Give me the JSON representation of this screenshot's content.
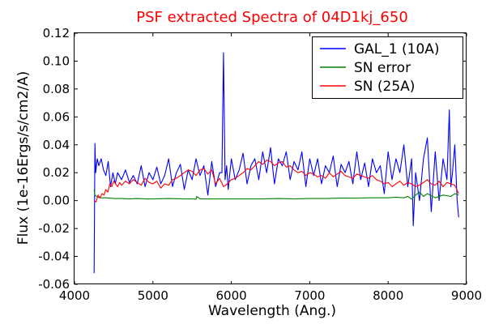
{
  "chart_data": {
    "type": "line",
    "title": "PSF extracted Spectra of 04D1kj_650",
    "xlabel": "Wavelength (Ang.)",
    "ylabel": "Flux (1e-16Ergs/s/cm2/A)",
    "xlim": [
      4000,
      9000
    ],
    "ylim": [
      -0.06,
      0.12
    ],
    "xticks": [
      4000,
      5000,
      6000,
      7000,
      8000,
      9000
    ],
    "xtick_labels": [
      "4000",
      "5000",
      "6000",
      "7000",
      "8000",
      "9000"
    ],
    "yticks": [
      -0.06,
      -0.04,
      -0.02,
      0.0,
      0.02,
      0.04,
      0.06,
      0.08,
      0.1,
      0.12
    ],
    "ytick_labels": [
      "-0.06",
      "-0.04",
      "-0.02",
      "0.00",
      "0.02",
      "0.04",
      "0.06",
      "0.08",
      "0.10",
      "0.12"
    ],
    "grid": false,
    "legend_position": "top-right",
    "series": [
      {
        "name": "GAL_1 (10A)",
        "color": "#0000ff",
        "x": [
          4250,
          4260,
          4270,
          4290,
          4310,
          4340,
          4370,
          4400,
          4430,
          4460,
          4490,
          4520,
          4550,
          4600,
          4650,
          4700,
          4750,
          4800,
          4850,
          4900,
          4950,
          5000,
          5050,
          5100,
          5150,
          5200,
          5250,
          5300,
          5350,
          5400,
          5450,
          5500,
          5550,
          5600,
          5650,
          5700,
          5750,
          5800,
          5850,
          5880,
          5900,
          5920,
          5940,
          5960,
          6000,
          6050,
          6100,
          6150,
          6200,
          6250,
          6300,
          6350,
          6400,
          6450,
          6500,
          6550,
          6600,
          6650,
          6700,
          6750,
          6800,
          6850,
          6900,
          6950,
          7000,
          7050,
          7100,
          7150,
          7200,
          7250,
          7300,
          7350,
          7400,
          7450,
          7500,
          7550,
          7600,
          7650,
          7700,
          7750,
          7800,
          7850,
          7900,
          7950,
          8000,
          8050,
          8100,
          8150,
          8200,
          8250,
          8300,
          8320,
          8350,
          8400,
          8450,
          8500,
          8550,
          8600,
          8650,
          8700,
          8750,
          8780,
          8800,
          8820,
          8850,
          8880,
          8900
        ],
        "y": [
          -0.052,
          0.041,
          0.02,
          0.03,
          0.025,
          0.03,
          0.022,
          0.018,
          0.028,
          0.01,
          0.02,
          0.012,
          0.02,
          0.015,
          0.022,
          0.013,
          0.018,
          0.012,
          0.025,
          0.01,
          0.02,
          0.015,
          0.024,
          0.012,
          0.018,
          0.03,
          0.01,
          0.02,
          0.026,
          0.008,
          0.022,
          0.015,
          0.03,
          0.018,
          0.025,
          0.004,
          0.028,
          0.01,
          0.02,
          0.02,
          0.106,
          0.015,
          0.025,
          0.008,
          0.03,
          0.015,
          0.022,
          0.034,
          0.012,
          0.025,
          0.03,
          0.015,
          0.035,
          0.02,
          0.038,
          0.012,
          0.03,
          0.025,
          0.035,
          0.015,
          0.028,
          0.022,
          0.035,
          0.01,
          0.03,
          0.018,
          0.03,
          0.012,
          0.025,
          0.02,
          0.032,
          0.01,
          0.026,
          0.02,
          0.028,
          0.012,
          0.035,
          0.015,
          0.027,
          0.01,
          0.03,
          0.02,
          0.025,
          0.005,
          0.035,
          0.015,
          0.03,
          0.02,
          0.04,
          0.01,
          0.03,
          -0.018,
          0.02,
          0.0,
          0.03,
          0.045,
          -0.008,
          0.035,
          0.0,
          0.03,
          0.015,
          0.065,
          0.01,
          0.02,
          0.04,
          0.0,
          -0.012
        ]
      },
      {
        "name": "SN error",
        "color": "#008000",
        "x": [
          4250,
          4260,
          4280,
          4320,
          4400,
          4500,
          4600,
          4700,
          4800,
          4900,
          5000,
          5200,
          5400,
          5500,
          5550,
          5560,
          5600,
          5800,
          6000,
          6200,
          6400,
          6600,
          6800,
          7000,
          7200,
          7400,
          7600,
          7800,
          8000,
          8100,
          8200,
          8250,
          8300,
          8350,
          8400,
          8450,
          8500,
          8600,
          8700,
          8800,
          8850,
          8900
        ],
        "y": [
          0.008,
          0.004,
          0.003,
          0.002,
          0.002,
          0.0015,
          0.0015,
          0.0012,
          0.0015,
          0.0012,
          0.0012,
          0.0015,
          0.0012,
          0.0012,
          0.001,
          0.003,
          0.0012,
          0.0012,
          0.0012,
          0.0012,
          0.0012,
          0.0015,
          0.0012,
          0.0015,
          0.0015,
          0.0018,
          0.0018,
          0.002,
          0.002,
          0.0025,
          0.002,
          0.003,
          0.001,
          0.004,
          0.006,
          0.003,
          0.005,
          0.002,
          0.004,
          0.003,
          0.005,
          0.004
        ]
      },
      {
        "name": "SN (25A)",
        "color": "#ff0000",
        "x": [
          4250,
          4275,
          4300,
          4325,
          4350,
          4375,
          4400,
          4425,
          4450,
          4475,
          4500,
          4525,
          4550,
          4575,
          4600,
          4650,
          4700,
          4750,
          4800,
          4850,
          4900,
          4950,
          5000,
          5050,
          5100,
          5150,
          5200,
          5250,
          5300,
          5350,
          5400,
          5450,
          5500,
          5550,
          5600,
          5650,
          5700,
          5750,
          5800,
          5850,
          5900,
          5950,
          6000,
          6050,
          6100,
          6150,
          6200,
          6250,
          6300,
          6350,
          6400,
          6450,
          6500,
          6550,
          6600,
          6650,
          6700,
          6750,
          6800,
          6850,
          6900,
          6950,
          7000,
          7050,
          7100,
          7150,
          7200,
          7250,
          7300,
          7350,
          7400,
          7450,
          7500,
          7550,
          7600,
          7650,
          7700,
          7750,
          7800,
          7850,
          7900,
          7950,
          8000,
          8050,
          8100,
          8150,
          8200,
          8250,
          8300,
          8350,
          8400,
          8450,
          8500,
          8550,
          8600,
          8650,
          8700,
          8750,
          8800,
          8850,
          8900
        ],
        "y": [
          0.0,
          -0.001,
          0.004,
          0.002,
          0.005,
          0.004,
          0.008,
          0.006,
          0.012,
          0.01,
          0.014,
          0.012,
          0.01,
          0.013,
          0.011,
          0.014,
          0.012,
          0.015,
          0.013,
          0.011,
          0.016,
          0.013,
          0.012,
          0.014,
          0.009,
          0.012,
          0.011,
          0.015,
          0.016,
          0.018,
          0.02,
          0.022,
          0.021,
          0.018,
          0.022,
          0.023,
          0.019,
          0.022,
          0.012,
          0.016,
          0.01,
          0.012,
          0.015,
          0.016,
          0.018,
          0.02,
          0.023,
          0.022,
          0.025,
          0.028,
          0.026,
          0.029,
          0.028,
          0.025,
          0.027,
          0.028,
          0.024,
          0.025,
          0.022,
          0.02,
          0.021,
          0.018,
          0.02,
          0.019,
          0.017,
          0.018,
          0.016,
          0.02,
          0.017,
          0.019,
          0.021,
          0.018,
          0.017,
          0.016,
          0.019,
          0.018,
          0.017,
          0.016,
          0.018,
          0.015,
          0.014,
          0.012,
          0.013,
          0.01,
          0.012,
          0.014,
          0.011,
          0.013,
          0.012,
          0.01,
          0.011,
          0.013,
          0.015,
          0.012,
          0.011,
          0.014,
          0.01,
          0.013,
          0.012,
          0.011,
          0.005
        ]
      }
    ]
  }
}
